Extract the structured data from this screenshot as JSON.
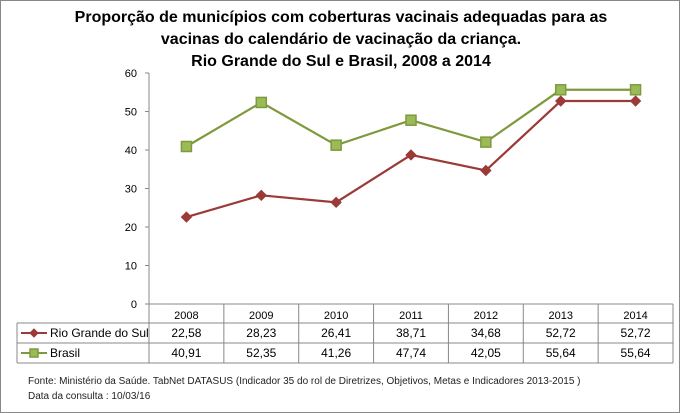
{
  "chart_data": {
    "type": "line",
    "title": [
      "Proporção de municípios com coberturas vacinais adequadas para as",
      "vacinas do calendário de vacinação da criança.",
      "Rio Grande do Sul e Brasil, 2008 a 2014"
    ],
    "categories": [
      "2008",
      "2009",
      "2010",
      "2011",
      "2012",
      "2013",
      "2014"
    ],
    "ylim": [
      0,
      60
    ],
    "yticks": [
      0,
      10,
      20,
      30,
      40,
      50,
      60
    ],
    "series": [
      {
        "name": "Rio Grande do Sul",
        "color": "#9b3a36",
        "marker": "diamond",
        "values": [
          22.58,
          28.23,
          26.41,
          38.71,
          34.68,
          52.72,
          52.72
        ],
        "labels": [
          "22,58",
          "28,23",
          "26,41",
          "38,71",
          "34,68",
          "52,72",
          "52,72"
        ]
      },
      {
        "name": "Brasil",
        "color": "#7e9a3c",
        "marker": "square",
        "values": [
          40.91,
          52.35,
          41.26,
          47.74,
          42.05,
          55.64,
          55.64
        ],
        "labels": [
          "40,91",
          "52,35",
          "41,26",
          "47,74",
          "42,05",
          "55,64",
          "55,64"
        ]
      }
    ],
    "legend": "data-table"
  },
  "source": "Fonte: Ministério da Saúde. TabNet DATASUS (Indicador 35 do rol de Diretrizes, Objetivos, Metas e Indicadores 2013-2015 )",
  "date": "Data da consulta : 10/03/16"
}
